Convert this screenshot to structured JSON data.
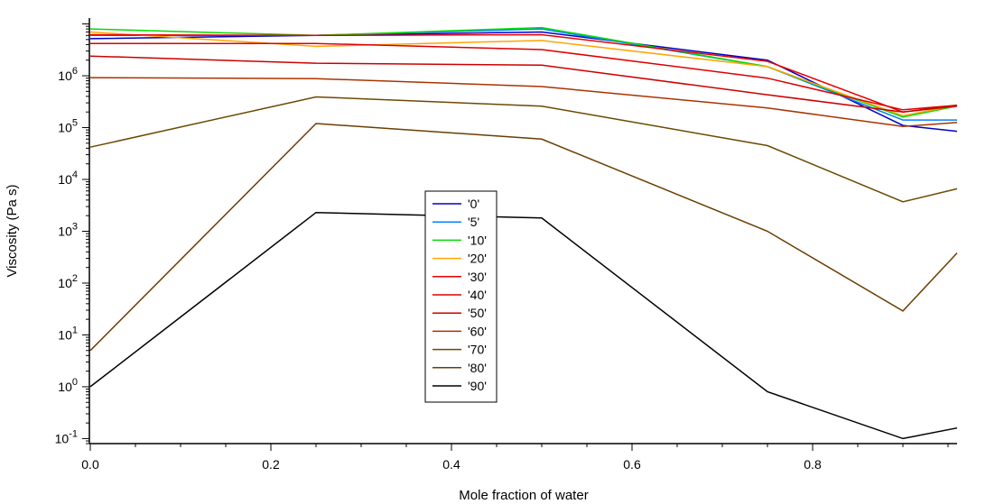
{
  "chart_data": {
    "type": "line",
    "xlabel": "Mole fraction of water",
    "ylabel": "Viscosity (Pa s)",
    "yscale": "log",
    "xlim": [
      0,
      0.96
    ],
    "ylim": [
      0.08,
      13000000
    ],
    "x_ticks": [
      "0.0",
      "0.2",
      "0.4",
      "0.6",
      "0.8"
    ],
    "y_ticks": [
      {
        "base": "10",
        "exp": "-1",
        "value": 0.1
      },
      {
        "base": "10",
        "exp": "0",
        "value": 1
      },
      {
        "base": "10",
        "exp": "1",
        "value": 10
      },
      {
        "base": "10",
        "exp": "2",
        "value": 100
      },
      {
        "base": "10",
        "exp": "3",
        "value": 1000
      },
      {
        "base": "10",
        "exp": "4",
        "value": 10000
      },
      {
        "base": "10",
        "exp": "5",
        "value": 100000
      },
      {
        "base": "10",
        "exp": "6",
        "value": 1000000
      }
    ],
    "grid": false,
    "legend_position": "center",
    "x": [
      0,
      0.25,
      0.5,
      0.75,
      0.9,
      0.96
    ],
    "series": [
      {
        "name": "'0'",
        "color": "#0000c8",
        "values": [
          5200000,
          6000000,
          7000000,
          2000000,
          110000,
          85000
        ]
      },
      {
        "name": "'5'",
        "color": "#0080ff",
        "values": [
          6000000,
          6000000,
          8000000,
          1500000,
          140000,
          140000
        ]
      },
      {
        "name": "'10'",
        "color": "#00dd00",
        "values": [
          8000000,
          6000000,
          8500000,
          1500000,
          160000,
          260000
        ]
      },
      {
        "name": "'20'",
        "color": "#ffa500",
        "values": [
          7000000,
          3700000,
          4800000,
          1500000,
          170000,
          270000
        ]
      },
      {
        "name": "'30'",
        "color": "#e60000",
        "values": [
          6200000,
          6000000,
          6200000,
          1900000,
          200000,
          260000
        ]
      },
      {
        "name": "'40'",
        "color": "#dd0000",
        "values": [
          4200000,
          4200000,
          3200000,
          900000,
          220000,
          270000
        ]
      },
      {
        "name": "'50'",
        "color": "#cc0000",
        "values": [
          2400000,
          1750000,
          1600000,
          430000,
          200000,
          270000
        ]
      },
      {
        "name": "'60'",
        "color": "#aa3300",
        "values": [
          920000,
          880000,
          620000,
          240000,
          105000,
          125000
        ]
      },
      {
        "name": "'70'",
        "color": "#6b4a00",
        "values": [
          42000,
          390000,
          260000,
          45000,
          3700,
          6600
        ]
      },
      {
        "name": "'80'",
        "color": "#6b3e00",
        "values": [
          5,
          120000,
          60000,
          1000,
          29,
          380
        ]
      },
      {
        "name": "'90'",
        "color": "#000000",
        "values": [
          1,
          2300,
          1800,
          0.8,
          0.1,
          0.16
        ]
      }
    ]
  }
}
